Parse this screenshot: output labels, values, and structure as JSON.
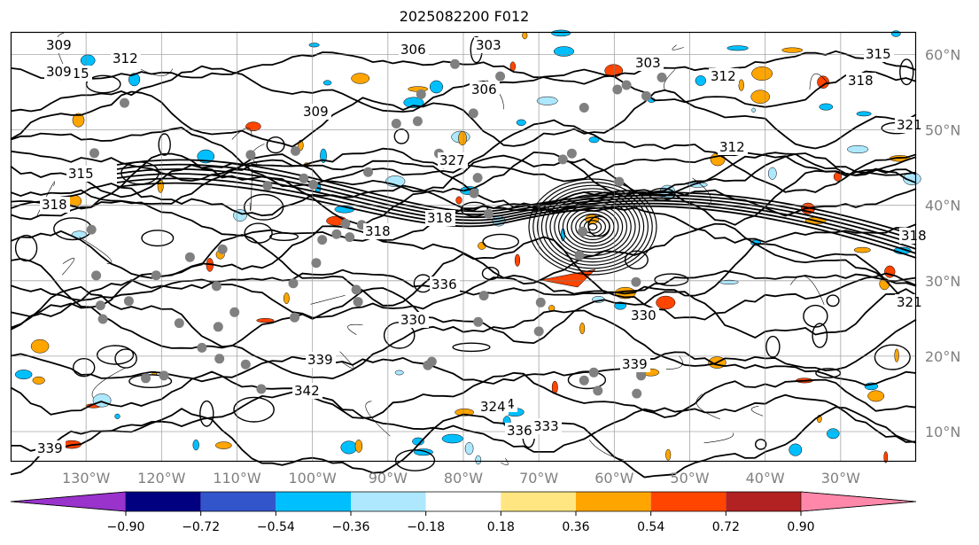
{
  "title": "2025082200 F012",
  "map": {
    "projection": "PlateCarree",
    "lon_range": [
      -140,
      -20
    ],
    "lat_range": [
      6,
      63
    ],
    "lat_labels": [
      "60°N",
      "50°N",
      "40°N",
      "30°N",
      "20°N",
      "10°N"
    ],
    "lat_values": [
      60,
      50,
      40,
      30,
      20,
      10
    ],
    "lon_labels": [
      "130°W",
      "120°W",
      "110°W",
      "100°W",
      "90°W",
      "80°W",
      "70°W",
      "60°W",
      "50°W",
      "40°W",
      "30°W"
    ],
    "lon_values": [
      -130,
      -120,
      -110,
      -100,
      -90,
      -80,
      -70,
      -60,
      -50,
      -40,
      -30
    ],
    "contour_labels": [
      "309",
      "312",
      "306",
      "303",
      "315",
      "309",
      "306",
      "327",
      "318",
      "315",
      "318",
      "309",
      "318",
      "312",
      "321",
      "336",
      "330",
      "339",
      "342",
      "324",
      "330",
      "339",
      "333",
      "336",
      "324",
      "339",
      "318",
      "315",
      "312",
      "303",
      "321",
      "318"
    ],
    "colors": {
      "contour": "#000000",
      "grid": "#808080",
      "marker": "#808080"
    }
  },
  "colorbar": {
    "ticks": [
      "−0.90",
      "−0.72",
      "−0.54",
      "−0.36",
      "−0.18",
      "0.18",
      "0.36",
      "0.54",
      "0.72",
      "0.90"
    ],
    "colors": [
      "#9933cc",
      "#000080",
      "#3355cc",
      "#00bfff",
      "#ade8ff",
      "#ffffff",
      "#ffe680",
      "#ffa500",
      "#ff4500",
      "#b22222",
      "#ff88aa"
    ]
  }
}
